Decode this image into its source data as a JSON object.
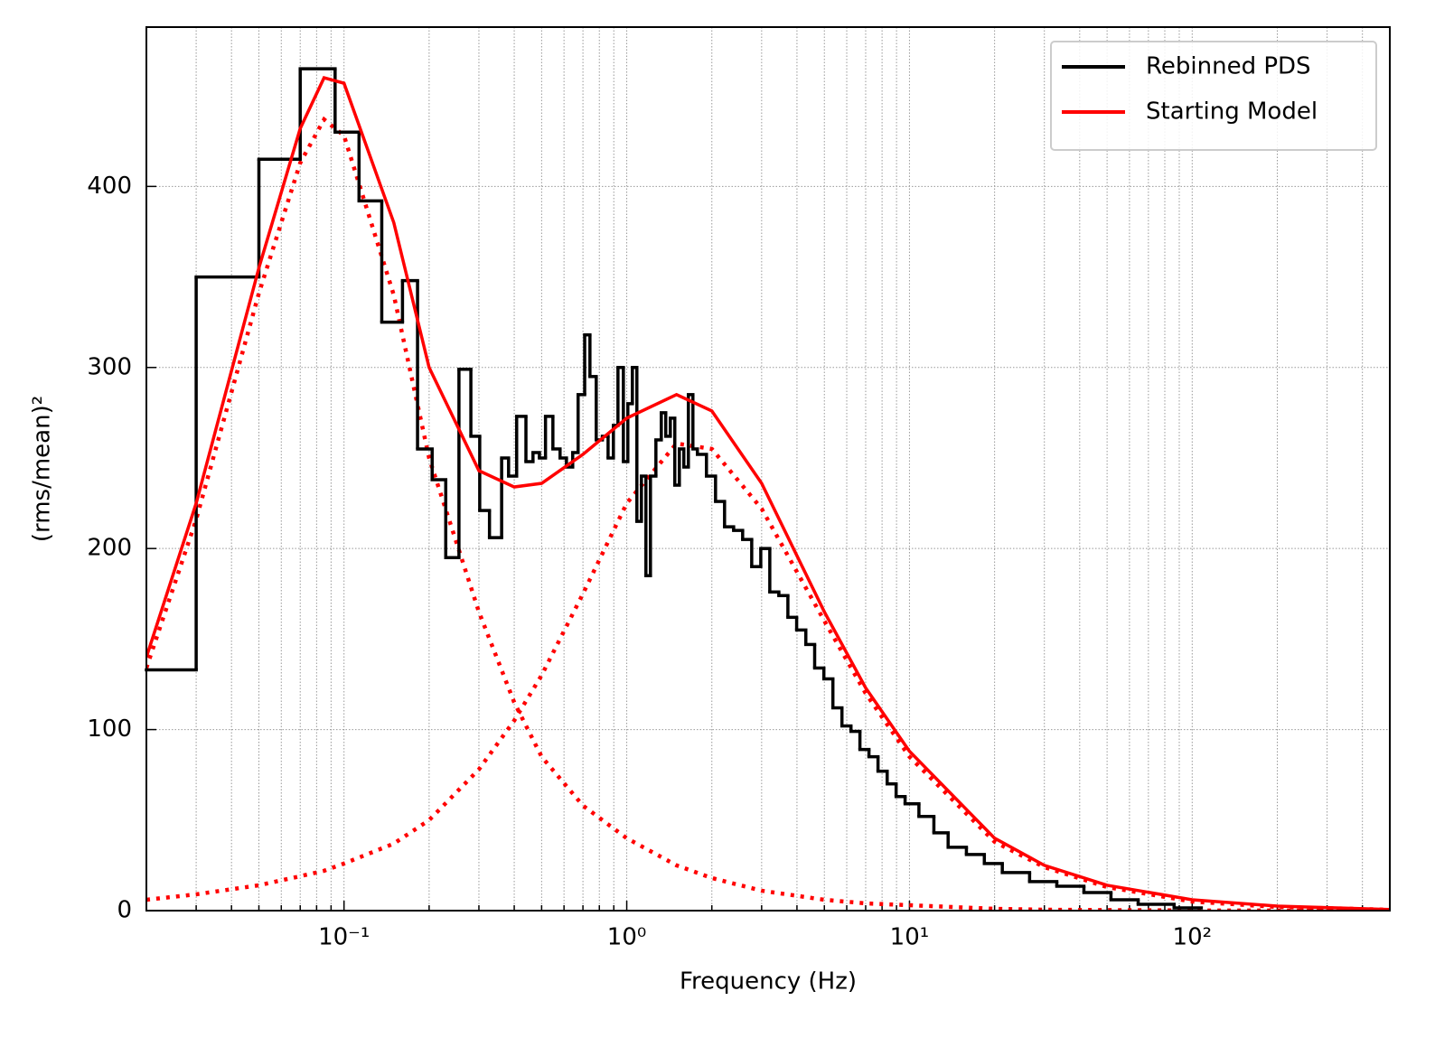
{
  "chart_data": {
    "type": "line",
    "xlabel": "Frequency (Hz)",
    "ylabel": "(rms/mean)²",
    "xscale": "log",
    "xlim": [
      0.02,
      500
    ],
    "ylim": [
      0,
      488
    ],
    "xticks": [
      {
        "value": 0.1,
        "label": "10⁻¹"
      },
      {
        "value": 1,
        "label": "10⁰"
      },
      {
        "value": 10,
        "label": "10¹"
      },
      {
        "value": 100,
        "label": "10²"
      }
    ],
    "xminorticks": [
      0.03,
      0.04,
      0.05,
      0.06,
      0.07,
      0.08,
      0.09,
      0.2,
      0.3,
      0.4,
      0.5,
      0.6,
      0.7,
      0.8,
      0.9,
      2,
      3,
      4,
      5,
      6,
      7,
      8,
      9,
      20,
      30,
      40,
      50,
      60,
      70,
      80,
      90,
      200,
      300,
      400
    ],
    "yticks": [
      0,
      100,
      200,
      300,
      400
    ],
    "grid": true,
    "legend": "upper right",
    "series": [
      {
        "name": "Rebinned PDS",
        "color": "#000000",
        "drawstyle": "steps",
        "bins": [
          0.02,
          0.03,
          0.05,
          0.07,
          0.093,
          0.113,
          0.136,
          0.161,
          0.182,
          0.205,
          0.229,
          0.255,
          0.281,
          0.302,
          0.327,
          0.361,
          0.382,
          0.408,
          0.44,
          0.466,
          0.491,
          0.516,
          0.548,
          0.581,
          0.612,
          0.644,
          0.673,
          0.71,
          0.741,
          0.78,
          0.82,
          0.859,
          0.897,
          0.931,
          0.973,
          1.009,
          1.047,
          1.086,
          1.127,
          1.169,
          1.213,
          1.268,
          1.325,
          1.374,
          1.426,
          1.479,
          1.535,
          1.592,
          1.652,
          1.714,
          1.778,
          1.914,
          2.061,
          2.218,
          2.388,
          2.57,
          2.767,
          2.979,
          3.206,
          3.451,
          3.715,
          3.99,
          4.3,
          4.62,
          4.98,
          5.36,
          5.77,
          6.21,
          6.68,
          7.19,
          7.74,
          8.34,
          8.97,
          9.65,
          10.8,
          12.2,
          13.7,
          15.9,
          18.4,
          21.3,
          26.6,
          33.2,
          41.4,
          51.6,
          64.4,
          86.3,
          107.7
        ],
        "values": [
          133,
          350,
          415,
          465,
          430,
          392,
          325,
          348,
          255,
          238,
          195,
          299,
          262,
          221,
          206,
          250,
          240,
          273,
          248,
          253,
          250,
          273,
          255,
          250,
          245,
          253,
          285,
          318,
          295,
          260,
          262,
          250,
          268,
          300,
          248,
          280,
          300,
          215,
          240,
          185,
          240,
          260,
          275,
          262,
          272,
          235,
          255,
          245,
          285,
          255,
          252,
          240,
          226,
          212,
          210,
          205,
          190,
          200,
          176,
          174,
          162,
          155,
          147,
          134,
          128,
          112,
          102,
          99,
          89,
          85,
          77,
          70,
          63,
          59,
          52,
          43,
          35,
          31,
          26,
          21,
          16,
          13.5,
          10,
          6,
          3.5,
          1.5
        ]
      },
      {
        "name": "Starting Model",
        "color": "#ff0000",
        "drawstyle": "solid",
        "x": [
          0.02,
          0.03,
          0.05,
          0.07,
          0.085,
          0.1,
          0.15,
          0.2,
          0.3,
          0.4,
          0.5,
          0.7,
          1,
          1.5,
          2,
          3,
          5,
          7,
          10,
          20,
          30,
          50,
          100,
          200,
          500
        ],
        "values": [
          140,
          225,
          355,
          432,
          460,
          457,
          380,
          300,
          243,
          234,
          236,
          252,
          272,
          285,
          276,
          236,
          165,
          123,
          88,
          40,
          25,
          14,
          6,
          2.5,
          0.6
        ]
      }
    ],
    "components": [
      {
        "color": "#ff0000",
        "drawstyle": "dotted",
        "x": [
          0.02,
          0.03,
          0.05,
          0.07,
          0.085,
          0.1,
          0.15,
          0.2,
          0.3,
          0.4,
          0.5,
          0.7,
          1,
          1.5,
          2,
          3,
          5,
          7,
          10,
          20,
          30,
          50,
          100,
          200,
          500
        ],
        "values": [
          134,
          216,
          341,
          413,
          437,
          428,
          340,
          250,
          165,
          115,
          85,
          58,
          40,
          25,
          18,
          11,
          6,
          4,
          3,
          1,
          0.5,
          0.3,
          0.1,
          0.05,
          0.01
        ]
      },
      {
        "color": "#ff0000",
        "drawstyle": "dotted",
        "x": [
          0.02,
          0.03,
          0.05,
          0.07,
          0.085,
          0.1,
          0.15,
          0.2,
          0.3,
          0.4,
          0.5,
          0.7,
          1,
          1.5,
          2,
          3,
          5,
          7,
          10,
          20,
          30,
          50,
          100,
          200,
          500
        ],
        "values": [
          6,
          9,
          14,
          19,
          22,
          26,
          37,
          50,
          78,
          105,
          130,
          175,
          225,
          258,
          255,
          222,
          160,
          120,
          85,
          38,
          24,
          13,
          5,
          2,
          0.5
        ]
      }
    ]
  }
}
